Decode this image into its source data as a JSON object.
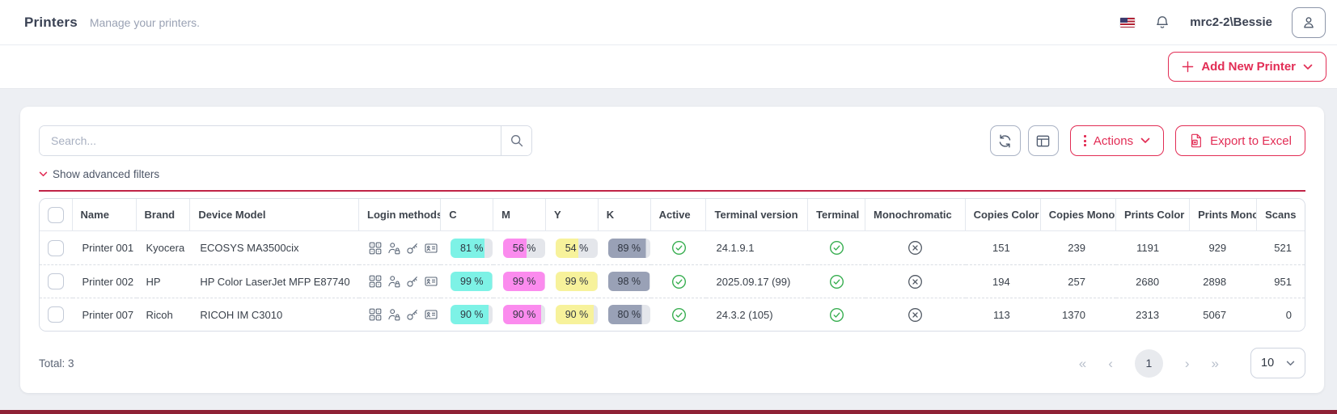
{
  "topbar": {
    "title": "Printers",
    "subtitle": "Manage your printers.",
    "username": "mrc2-2\\Bessie"
  },
  "action_bar": {
    "add_printer_label": "Add New Printer"
  },
  "toolbar": {
    "search_placeholder": "Search...",
    "actions_label": "Actions",
    "export_label": "Export to Excel"
  },
  "filters": {
    "toggle_label": "Show advanced filters"
  },
  "table": {
    "columns": [
      "Name",
      "Brand",
      "Device Model",
      "Login methods",
      "C",
      "M",
      "Y",
      "K",
      "Active",
      "Terminal version",
      "Terminal",
      "Monochromatic",
      "Copies Color",
      "Copies Mono",
      "Prints Color",
      "Prints Mono",
      "Scans"
    ],
    "rows": [
      {
        "name": "Printer 001",
        "brand": "Kyocera",
        "model": "ECOSYS MA3500cix",
        "login_methods": [
          "pin-code-icon",
          "user-lock-icon",
          "key-icon",
          "id-card-icon"
        ],
        "c": 81,
        "m": 56,
        "y": 54,
        "k": 89,
        "active": true,
        "terminal_version": "24.1.9.1",
        "terminal": true,
        "monochromatic": false,
        "copies_color": 151,
        "copies_mono": 239,
        "prints_color": 1191,
        "prints_mono": 929,
        "scans": 521
      },
      {
        "name": "Printer 002",
        "brand": "HP",
        "model": "HP Color LaserJet MFP E87740",
        "login_methods": [
          "pin-code-icon",
          "user-lock-icon",
          "key-icon",
          "id-card-icon"
        ],
        "c": 99,
        "m": 99,
        "y": 99,
        "k": 98,
        "active": true,
        "terminal_version": "2025.09.17 (99)",
        "terminal": true,
        "monochromatic": false,
        "copies_color": 194,
        "copies_mono": 257,
        "prints_color": 2680,
        "prints_mono": 2898,
        "scans": 951
      },
      {
        "name": "Printer 007",
        "brand": "Ricoh",
        "model": "RICOH IM C3010",
        "login_methods": [
          "pin-code-icon",
          "user-lock-icon",
          "key-icon",
          "id-card-icon"
        ],
        "c": 90,
        "m": 90,
        "y": 90,
        "k": 80,
        "active": true,
        "terminal_version": "24.3.2 (105)",
        "terminal": true,
        "monochromatic": false,
        "copies_color": 113,
        "copies_mono": 1370,
        "prints_color": 2313,
        "prints_mono": 5067,
        "scans": 0
      }
    ]
  },
  "pagination": {
    "total_label": "Total: 3",
    "current_page": "1",
    "page_size": "10",
    "first_label": "«",
    "prev_label": "‹",
    "next_label": "›",
    "last_label": "»"
  },
  "colors": {
    "accent": "#e22d55",
    "divider_red": "#c02447",
    "cyan": "#7df2e6",
    "magenta": "#fb8bee",
    "yellow": "#f7f29b",
    "black_ink": "#99a1b6",
    "badge_track": "#e4e6eb",
    "success_green": "#35ad4e",
    "neutral_gray": "#4d5560"
  }
}
